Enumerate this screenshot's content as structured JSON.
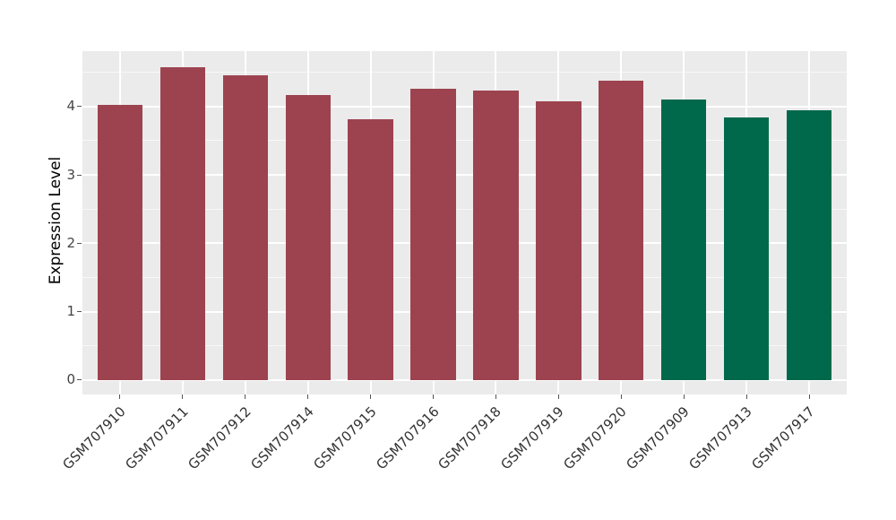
{
  "figure": {
    "background": "#FFFFFF",
    "panel_background": "#EBEBEB",
    "grid_color": "#FFFFFF",
    "tick_color": "#555555",
    "axis_text_color": "#444444",
    "axis_title_color": "#000000"
  },
  "chart_data": {
    "type": "bar",
    "title": "",
    "xlabel": "",
    "ylabel": "Expression Level",
    "categories": [
      "GSM707910",
      "GSM707911",
      "GSM707912",
      "GSM707914",
      "GSM707915",
      "GSM707916",
      "GSM707918",
      "GSM707919",
      "GSM707920",
      "GSM707909",
      "GSM707913",
      "GSM707917"
    ],
    "values": [
      4.02,
      4.58,
      4.45,
      4.17,
      3.81,
      4.26,
      4.23,
      4.08,
      4.38,
      4.1,
      3.84,
      3.95
    ],
    "bar_colors": [
      "#9D4350",
      "#9D4350",
      "#9D4350",
      "#9D4350",
      "#9D4350",
      "#9D4350",
      "#9D4350",
      "#9D4350",
      "#9D4350",
      "#00694B",
      "#00694B",
      "#00694B"
    ],
    "yticks": [
      0,
      1,
      2,
      3,
      4
    ],
    "yticks_minor": [
      0.5,
      1.5,
      2.5,
      3.5,
      4.5
    ],
    "ylim": [
      -0.21,
      4.81
    ],
    "grid": true,
    "legend": "none",
    "x_tick_rotation": 45
  }
}
